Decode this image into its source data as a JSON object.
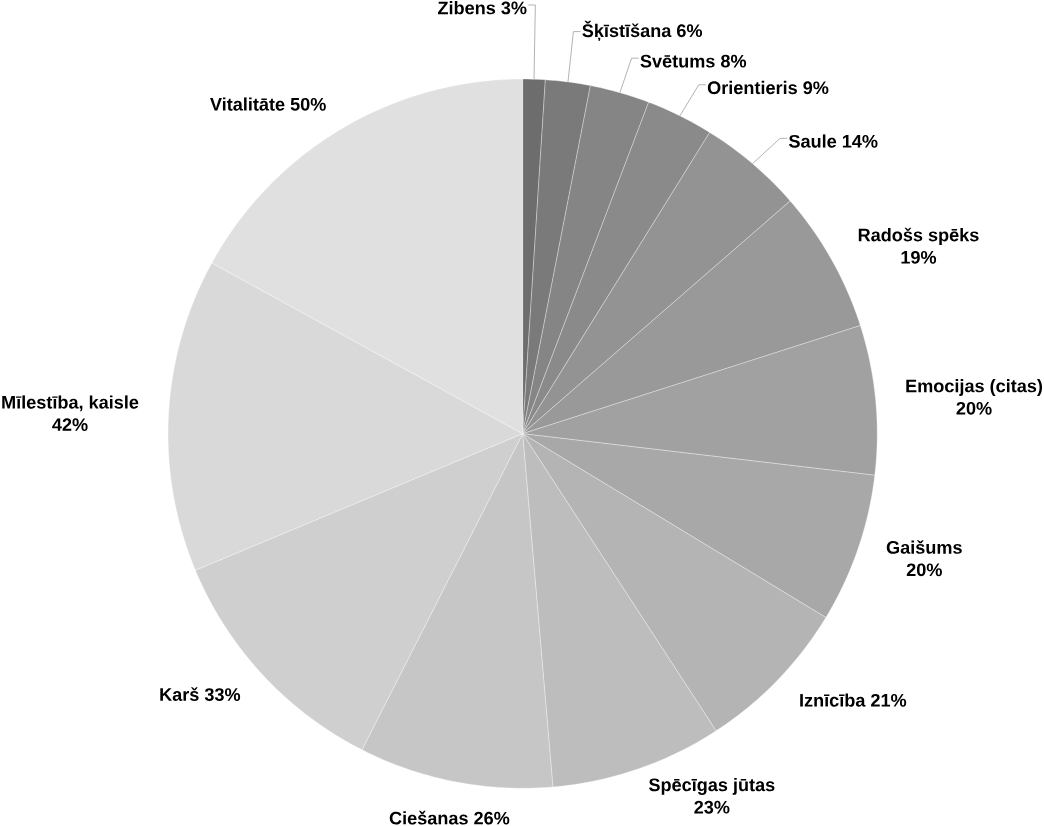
{
  "chart_data": {
    "type": "pie",
    "categories": [
      "Zibens",
      "Šķīstīšana",
      "Svētums",
      "Orientieris",
      "Saule",
      "Radošs spēks",
      "Emocijas (citas)",
      "Gaišums",
      "Iznīcība",
      "Spēcīgas jūtas",
      "Ciešanas",
      "Karš",
      "Mīlestība, kaisle",
      "Vitalitāte"
    ],
    "values": [
      3,
      6,
      8,
      9,
      14,
      19,
      20,
      20,
      21,
      23,
      26,
      33,
      42,
      50
    ],
    "value_labels": [
      "3%",
      "6%",
      "8%",
      "9%",
      "14%",
      "19%",
      "20%",
      "20%",
      "21%",
      "23%",
      "26%",
      "33%",
      "42%",
      "50%"
    ],
    "colors": [
      "#6d6d6d",
      "#7a7a7a",
      "#858585",
      "#8a8a8a",
      "#939393",
      "#999999",
      "#a1a1a1",
      "#a8a8a8",
      "#b4b4b4",
      "#bdbdbd",
      "#c6c6c6",
      "#cfcfcf",
      "#d9d9d9",
      "#e0e0e0"
    ]
  }
}
